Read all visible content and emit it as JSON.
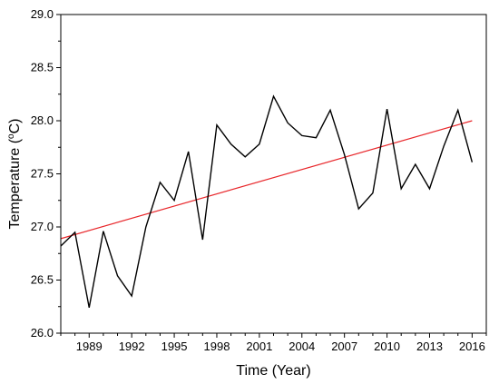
{
  "chart_data": {
    "type": "line",
    "xlabel": "Time (Year)",
    "ylabel_parts": {
      "before": "Temperature (",
      "superscript": "o",
      "after": "C)"
    },
    "xlim": [
      1987,
      2017
    ],
    "ylim": [
      26.0,
      29.0
    ],
    "xticks": [
      1989,
      1992,
      1995,
      1998,
      2001,
      2004,
      2007,
      2010,
      2013,
      2016
    ],
    "yticks": [
      26.0,
      26.5,
      27.0,
      27.5,
      28.0,
      28.5,
      29.0
    ],
    "x": [
      1987,
      1988,
      1989,
      1990,
      1991,
      1992,
      1993,
      1994,
      1995,
      1996,
      1997,
      1998,
      1999,
      2000,
      2001,
      2002,
      2003,
      2004,
      2005,
      2006,
      2007,
      2008,
      2009,
      2010,
      2011,
      2012,
      2013,
      2014,
      2015,
      2016
    ],
    "series": [
      {
        "color": "#000000",
        "values": [
          26.82,
          26.95,
          26.24,
          26.96,
          26.54,
          26.35,
          27.0,
          27.42,
          27.25,
          27.71,
          26.88,
          27.96,
          27.78,
          27.66,
          27.78,
          28.23,
          27.98,
          27.86,
          27.84,
          28.1,
          27.68,
          27.17,
          27.32,
          28.11,
          27.36,
          27.59,
          27.36,
          27.76,
          28.1,
          27.61
        ]
      }
    ],
    "trend": {
      "color": "#e8262a",
      "x": [
        1987,
        2016
      ],
      "y": [
        26.89,
        28.0
      ]
    },
    "grid": false,
    "legend": "none"
  }
}
